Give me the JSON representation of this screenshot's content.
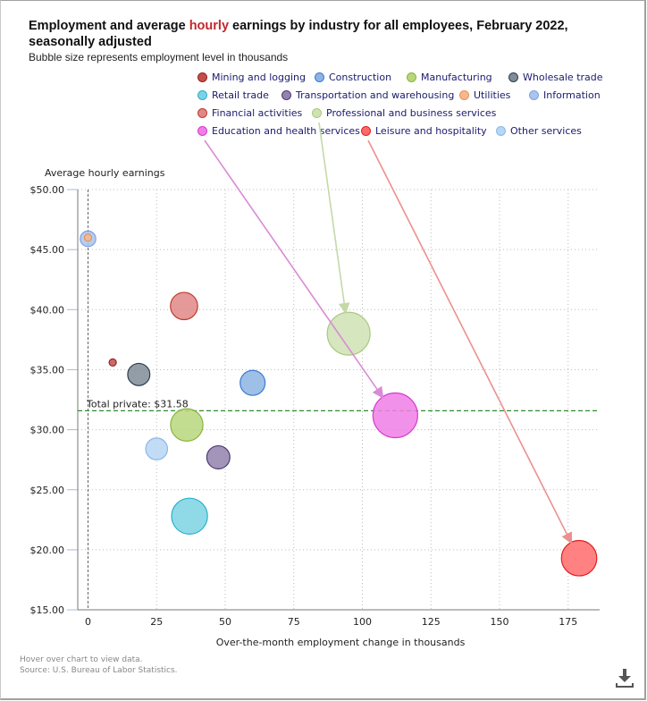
{
  "title_parts": {
    "before": "Employment and average ",
    "highlight": "hourly",
    "after": " earnings by industry for all employees, February 2022, seasonally adjusted"
  },
  "subtitle": "Bubble size represents employment level in thousands",
  "footer": {
    "hover_note": "Hover over chart to view data.",
    "source": "Source: U.S. Bureau of Labor Statistics."
  },
  "download_icon": "download-icon",
  "chart_data": {
    "type": "scatter",
    "title": "Employment and average hourly earnings by industry for all employees, February 2022, seasonally adjusted",
    "subtitle": "Bubble size represents employment level in thousands",
    "xlabel": "Over-the-month employment change in thousands",
    "ylabel": "Average hourly earnings",
    "xlim": [
      -4,
      187
    ],
    "ylim": [
      15,
      50
    ],
    "x_ticks": [
      0,
      25,
      50,
      75,
      100,
      125,
      150,
      175
    ],
    "x_tick_labels": [
      "0",
      "25",
      "50",
      "75",
      "100",
      "125",
      "150",
      "175"
    ],
    "y_ticks": [
      15,
      20,
      25,
      30,
      35,
      40,
      45,
      50
    ],
    "y_tick_labels": [
      "$15.00",
      "$20.00",
      "$25.00",
      "$30.00",
      "$35.00",
      "$40.00",
      "$45.00",
      "$50.00"
    ],
    "grid": true,
    "legend_position": "top",
    "reference_line": {
      "label": "Total private: $31.58",
      "value": 31.58,
      "color": "#2e8b2e"
    },
    "series": [
      {
        "name": "Mining and logging",
        "x": 9,
        "y": 35.6,
        "size": 630,
        "fill": "#c0504d",
        "stroke": "#a02020"
      },
      {
        "name": "Construction",
        "x": 60,
        "y": 33.9,
        "size": 7500,
        "fill": "#8db4e2",
        "stroke": "#3a7bd5"
      },
      {
        "name": "Manufacturing",
        "x": 36,
        "y": 30.4,
        "size": 12600,
        "fill": "#b8d77c",
        "stroke": "#8ab43c"
      },
      {
        "name": "Wholesale trade",
        "x": 18.5,
        "y": 34.6,
        "size": 5900,
        "fill": "#7f8c99",
        "stroke": "#2f3e4e"
      },
      {
        "name": "Retail trade",
        "x": 37,
        "y": 22.8,
        "size": 15500,
        "fill": "#7dd3e3",
        "stroke": "#2ab0cc"
      },
      {
        "name": "Transportation and warehousing",
        "x": 47.5,
        "y": 27.7,
        "size": 6400,
        "fill": "#9383ad",
        "stroke": "#4b3a73"
      },
      {
        "name": "Utilities",
        "x": 0,
        "y": 46.0,
        "size": 540,
        "fill": "#f7b98b",
        "stroke": "#e8915a"
      },
      {
        "name": "Information",
        "x": 0,
        "y": 45.9,
        "size": 2900,
        "fill": "#a9c4ef",
        "stroke": "#7da3e0"
      },
      {
        "name": "Financial activities",
        "x": 35,
        "y": 40.3,
        "size": 8900,
        "fill": "#e08787",
        "stroke": "#c0392b"
      },
      {
        "name": "Professional and business services",
        "x": 95,
        "y": 38.0,
        "size": 22000,
        "fill": "#cfe2b4",
        "stroke": "#a9c97c"
      },
      {
        "name": "Education and health services",
        "x": 112,
        "y": 31.2,
        "size": 24000,
        "fill": "#f07ee6",
        "stroke": "#d63ad0"
      },
      {
        "name": "Leisure and hospitality",
        "x": 179,
        "y": 19.3,
        "size": 15000,
        "fill": "#ff6b6b",
        "stroke": "#e02020"
      },
      {
        "name": "Other services",
        "x": 25,
        "y": 28.4,
        "size": 5700,
        "fill": "#b8d6f5",
        "stroke": "#8ab8e8"
      }
    ],
    "annotations": [
      {
        "from_legend": "Education and health services",
        "to_series": "Education and health services",
        "color": "#d98bd6"
      },
      {
        "from_legend": "Professional and business services",
        "to_series": "Professional and business services",
        "color": "#c5d9a8"
      },
      {
        "from_legend": "Leisure and hospitality",
        "to_series": "Leisure and hospitality",
        "color": "#ec8f8f"
      }
    ]
  }
}
